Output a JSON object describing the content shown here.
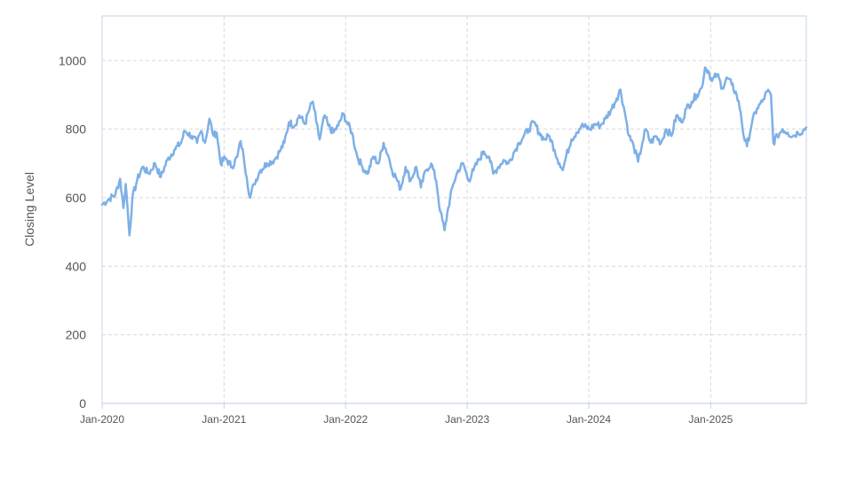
{
  "chart_data": {
    "type": "line",
    "title": "",
    "xlabel": "",
    "ylabel": "Closing Level",
    "ylim": [
      0,
      1130
    ],
    "yticks": [
      0,
      200,
      400,
      600,
      800,
      1000
    ],
    "xlim": [
      "2020-01-01",
      "2025-10-15"
    ],
    "xticks": [
      "Jan-2020",
      "Jan-2021",
      "Jan-2022",
      "Jan-2023",
      "Jan-2024",
      "Jan-2025"
    ],
    "grid": true,
    "legend": "none",
    "series": [
      {
        "color": "#7eb0e6",
        "points": [
          [
            "2020-01-01",
            580
          ],
          [
            "2020-01-20",
            595
          ],
          [
            "2020-02-10",
            610
          ],
          [
            "2020-02-24",
            655
          ],
          [
            "2020-03-05",
            570
          ],
          [
            "2020-03-12",
            640
          ],
          [
            "2020-03-18",
            560
          ],
          [
            "2020-03-23",
            490
          ],
          [
            "2020-04-01",
            600
          ],
          [
            "2020-04-15",
            650
          ],
          [
            "2020-05-01",
            690
          ],
          [
            "2020-05-20",
            670
          ],
          [
            "2020-06-08",
            700
          ],
          [
            "2020-06-25",
            660
          ],
          [
            "2020-07-15",
            710
          ],
          [
            "2020-08-05",
            740
          ],
          [
            "2020-08-25",
            760
          ],
          [
            "2020-09-05",
            795
          ],
          [
            "2020-09-25",
            780
          ],
          [
            "2020-10-12",
            760
          ],
          [
            "2020-10-25",
            795
          ],
          [
            "2020-11-05",
            760
          ],
          [
            "2020-11-18",
            830
          ],
          [
            "2020-12-01",
            780
          ],
          [
            "2020-12-10",
            790
          ],
          [
            "2020-12-22",
            700
          ],
          [
            "2021-01-05",
            715
          ],
          [
            "2021-01-25",
            690
          ],
          [
            "2021-02-10",
            720
          ],
          [
            "2021-02-20",
            765
          ],
          [
            "2021-03-01",
            720
          ],
          [
            "2021-03-10",
            660
          ],
          [
            "2021-03-20",
            600
          ],
          [
            "2021-04-01",
            640
          ],
          [
            "2021-04-20",
            680
          ],
          [
            "2021-05-10",
            700
          ],
          [
            "2021-06-01",
            710
          ],
          [
            "2021-06-20",
            740
          ],
          [
            "2021-07-01",
            760
          ],
          [
            "2021-07-15",
            820
          ],
          [
            "2021-08-01",
            810
          ],
          [
            "2021-08-15",
            840
          ],
          [
            "2021-09-01",
            815
          ],
          [
            "2021-09-15",
            860
          ],
          [
            "2021-09-25",
            880
          ],
          [
            "2021-10-05",
            820
          ],
          [
            "2021-10-15",
            770
          ],
          [
            "2021-10-30",
            840
          ],
          [
            "2021-11-10",
            810
          ],
          [
            "2021-11-25",
            790
          ],
          [
            "2021-12-10",
            810
          ],
          [
            "2021-12-25",
            845
          ],
          [
            "2022-01-05",
            820
          ],
          [
            "2022-01-20",
            790
          ],
          [
            "2022-02-05",
            720
          ],
          [
            "2022-02-20",
            690
          ],
          [
            "2022-03-08",
            670
          ],
          [
            "2022-03-25",
            720
          ],
          [
            "2022-04-10",
            700
          ],
          [
            "2022-04-25",
            760
          ],
          [
            "2022-05-10",
            720
          ],
          [
            "2022-05-20",
            680
          ],
          [
            "2022-06-01",
            660
          ],
          [
            "2022-06-15",
            625
          ],
          [
            "2022-06-30",
            690
          ],
          [
            "2022-07-15",
            650
          ],
          [
            "2022-08-01",
            690
          ],
          [
            "2022-08-15",
            630
          ],
          [
            "2022-08-30",
            680
          ],
          [
            "2022-09-15",
            700
          ],
          [
            "2022-09-30",
            650
          ],
          [
            "2022-10-12",
            560
          ],
          [
            "2022-10-25",
            505
          ],
          [
            "2022-11-05",
            570
          ],
          [
            "2022-11-20",
            640
          ],
          [
            "2022-12-05",
            680
          ],
          [
            "2022-12-20",
            700
          ],
          [
            "2023-01-05",
            650
          ],
          [
            "2023-01-20",
            680
          ],
          [
            "2023-02-05",
            710
          ],
          [
            "2023-02-20",
            735
          ],
          [
            "2023-03-08",
            720
          ],
          [
            "2023-03-20",
            670
          ],
          [
            "2023-04-05",
            690
          ],
          [
            "2023-04-20",
            710
          ],
          [
            "2023-05-05",
            700
          ],
          [
            "2023-05-20",
            730
          ],
          [
            "2023-06-05",
            760
          ],
          [
            "2023-06-20",
            780
          ],
          [
            "2023-07-05",
            800
          ],
          [
            "2023-07-20",
            820
          ],
          [
            "2023-08-05",
            790
          ],
          [
            "2023-08-20",
            770
          ],
          [
            "2023-09-05",
            780
          ],
          [
            "2023-09-20",
            740
          ],
          [
            "2023-10-05",
            700
          ],
          [
            "2023-10-15",
            680
          ],
          [
            "2023-10-25",
            720
          ],
          [
            "2023-11-10",
            770
          ],
          [
            "2023-11-25",
            790
          ],
          [
            "2023-12-10",
            810
          ],
          [
            "2024-01-05",
            800
          ],
          [
            "2024-01-20",
            815
          ],
          [
            "2024-02-05",
            810
          ],
          [
            "2024-02-20",
            830
          ],
          [
            "2024-03-10",
            860
          ],
          [
            "2024-03-25",
            890
          ],
          [
            "2024-04-05",
            915
          ],
          [
            "2024-04-18",
            850
          ],
          [
            "2024-05-01",
            780
          ],
          [
            "2024-05-15",
            750
          ],
          [
            "2024-05-28",
            705
          ],
          [
            "2024-06-10",
            760
          ],
          [
            "2024-06-20",
            800
          ],
          [
            "2024-07-05",
            760
          ],
          [
            "2024-07-20",
            780
          ],
          [
            "2024-08-05",
            760
          ],
          [
            "2024-08-20",
            800
          ],
          [
            "2024-09-05",
            780
          ],
          [
            "2024-09-20",
            840
          ],
          [
            "2024-10-05",
            820
          ],
          [
            "2024-10-20",
            860
          ],
          [
            "2024-11-05",
            880
          ],
          [
            "2024-11-20",
            900
          ],
          [
            "2024-12-05",
            920
          ],
          [
            "2024-12-15",
            980
          ],
          [
            "2024-12-25",
            970
          ],
          [
            "2025-01-05",
            940
          ],
          [
            "2025-01-20",
            960
          ],
          [
            "2025-02-05",
            920
          ],
          [
            "2025-02-20",
            950
          ],
          [
            "2025-03-05",
            930
          ],
          [
            "2025-03-20",
            900
          ],
          [
            "2025-04-01",
            850
          ],
          [
            "2025-04-10",
            780
          ],
          [
            "2025-04-20",
            750
          ],
          [
            "2025-05-05",
            820
          ],
          [
            "2025-05-20",
            860
          ],
          [
            "2025-06-05",
            880
          ],
          [
            "2025-06-20",
            910
          ],
          [
            "2025-07-01",
            900
          ],
          [
            "2025-07-08",
            760
          ],
          [
            "2025-07-20",
            780
          ],
          [
            "2025-08-05",
            800
          ],
          [
            "2025-08-20",
            790
          ],
          [
            "2025-09-05",
            780
          ],
          [
            "2025-09-20",
            790
          ],
          [
            "2025-10-05",
            795
          ],
          [
            "2025-10-15",
            805
          ]
        ]
      }
    ]
  }
}
